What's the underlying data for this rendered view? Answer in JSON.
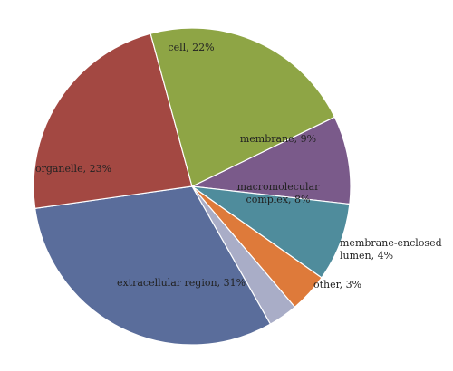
{
  "chart_data": {
    "type": "pie",
    "title": "",
    "start_angle_deg": 64,
    "direction": "clockwise",
    "slices": [
      {
        "label": "membrane, 9%",
        "value": 9,
        "color": "#7a5a8a"
      },
      {
        "label": "macromolecular complex, 8%",
        "label_lines": [
          "macromolecular",
          "complex, 8%"
        ],
        "value": 8,
        "color": "#4f8c9c"
      },
      {
        "label": "membrane-enclosed lumen, 4%",
        "label_lines": [
          "membrane-enclosed",
          "lumen, 4%"
        ],
        "value": 4,
        "color": "#de7a3a"
      },
      {
        "label": "other, 3%",
        "value": 3,
        "color": "#a9adc7"
      },
      {
        "label": "extracellular region, 31%",
        "value": 31,
        "color": "#5a6d9b"
      },
      {
        "label": "organelle, 23%",
        "value": 23,
        "color": "#a34842"
      },
      {
        "label": "cell, 22%",
        "value": 22,
        "color": "#8ea545"
      }
    ],
    "legend": "none"
  }
}
